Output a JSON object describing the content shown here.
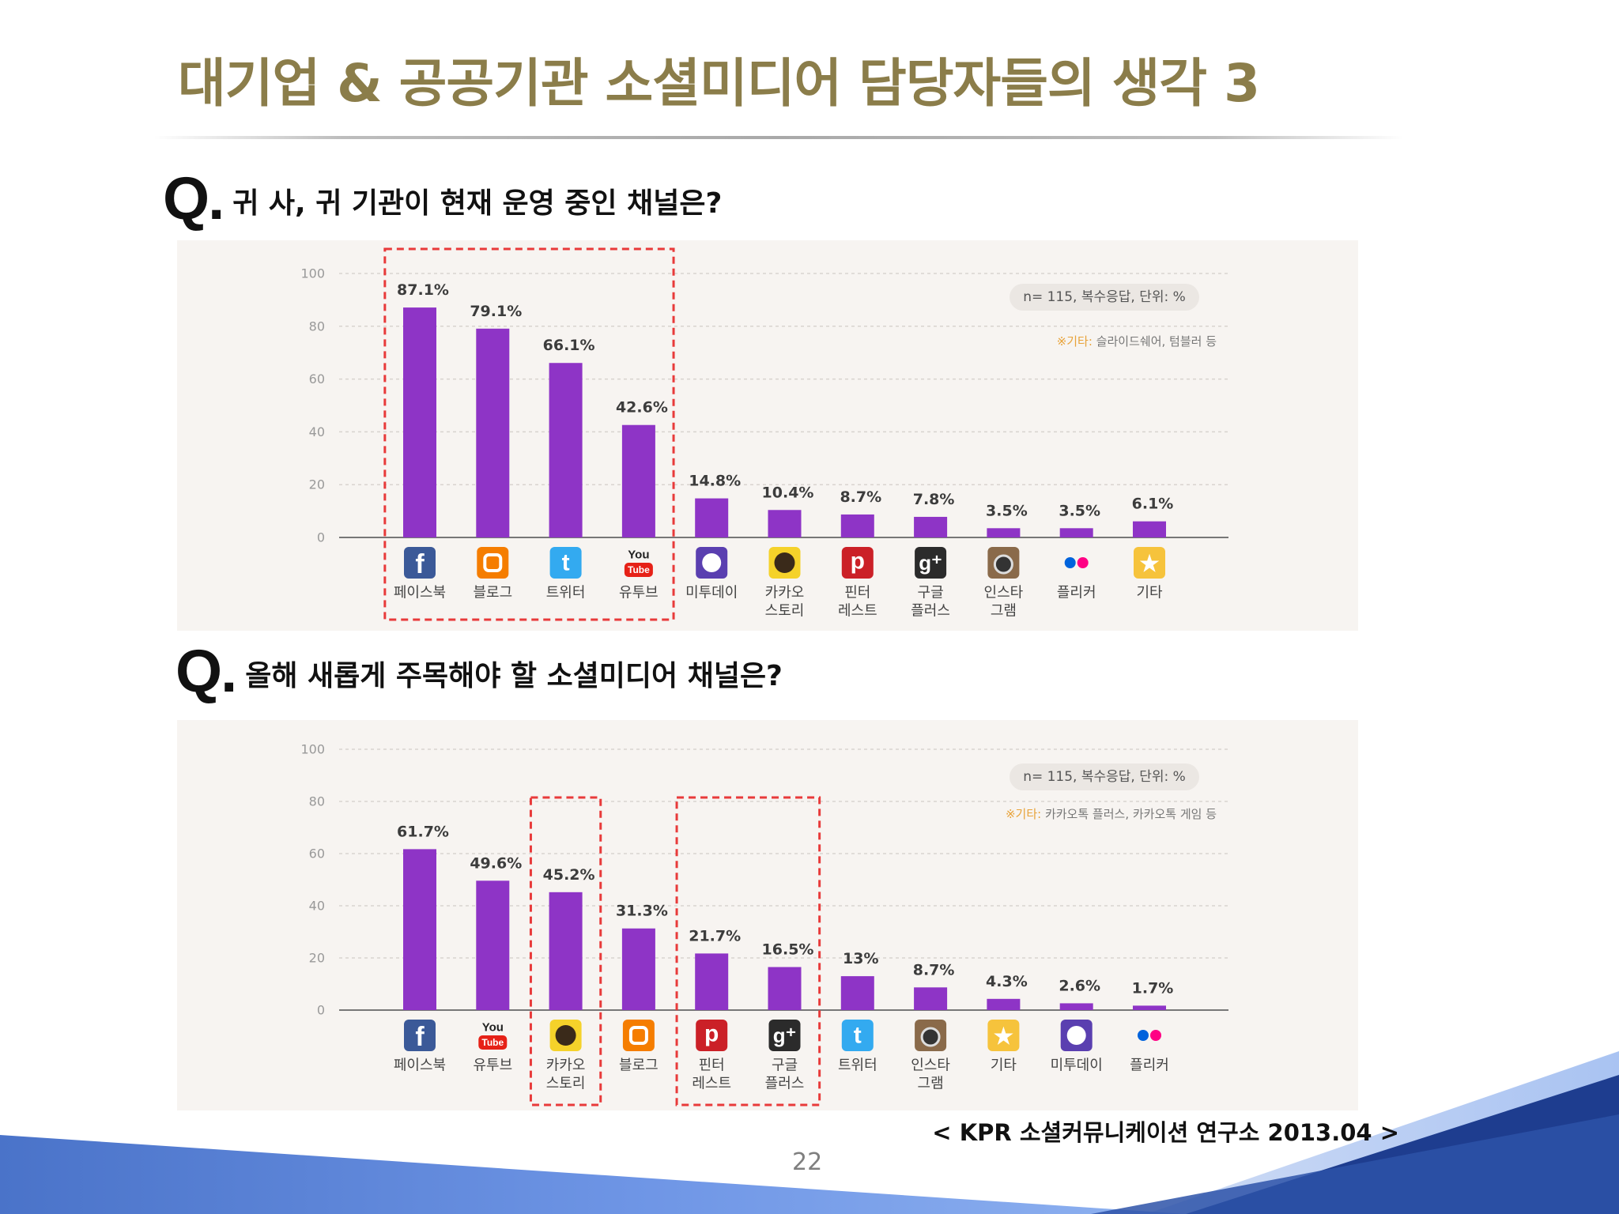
{
  "slide": {
    "title": "대기업 & 공공기관 소셜미디어 담당자들의 생각 3",
    "source": "< KPR 소셜커뮤니케이션 연구소 2013.04 >",
    "page_number": "22"
  },
  "questions": [
    {
      "mark": "Q.",
      "text": "귀 사, 귀 기관이 현재 운영 중인 채널은?"
    },
    {
      "mark": "Q.",
      "text": "올해 새롭게 주목해야 할 소셜미디어 채널은?"
    }
  ],
  "colors": {
    "bar": "#8e34c6",
    "title": "#8b7d4a",
    "highlight_box": "#e83a3a",
    "axis": "#777777",
    "panel": "#f7f4f1"
  },
  "chart_data": [
    {
      "type": "bar",
      "title": "",
      "xlabel": "",
      "ylabel": "",
      "ylim": [
        0,
        100
      ],
      "yticks": [
        0,
        20,
        40,
        60,
        80,
        100
      ],
      "grid": true,
      "note": "n= 115, 복수응답, 단위: %",
      "footnote_mark": "※기타:",
      "footnote_text": "슬라이드쉐어, 텀블러 등",
      "categories": [
        "페이스북",
        "블로그",
        "트위터",
        "유투브",
        "미투데이",
        "카카오 스토리",
        "핀터 레스트",
        "구글 플러스",
        "인스타 그램",
        "플리커",
        "기타"
      ],
      "values": [
        87.1,
        79.1,
        66.1,
        42.6,
        14.8,
        10.4,
        8.7,
        7.8,
        3.5,
        3.5,
        6.1
      ],
      "data_labels": [
        "87.1%",
        "79.1%",
        "66.1%",
        "42.6%",
        "14.8%",
        "10.4%",
        "8.7%",
        "7.8%",
        "3.5%",
        "3.5%",
        "6.1%"
      ],
      "icons": [
        "facebook-icon",
        "blogger-icon",
        "twitter-icon",
        "youtube-icon",
        "me2day-icon",
        "kakaostory-icon",
        "pinterest-icon",
        "googleplus-icon",
        "instagram-icon",
        "flickr-icon",
        "star-icon"
      ],
      "highlighted": [
        [
          0,
          3
        ]
      ]
    },
    {
      "type": "bar",
      "title": "",
      "xlabel": "",
      "ylabel": "",
      "ylim": [
        0,
        100
      ],
      "yticks": [
        0,
        20,
        40,
        60,
        80,
        100
      ],
      "grid": true,
      "note": "n= 115, 복수응답, 단위: %",
      "footnote_mark": "※기타:",
      "footnote_text": "카카오톡 플러스, 카카오톡 게임 등",
      "categories": [
        "페이스북",
        "유투브",
        "카카오 스토리",
        "블로그",
        "핀터 레스트",
        "구글 플러스",
        "트위터",
        "인스타 그램",
        "기타",
        "미투데이",
        "플리커"
      ],
      "values": [
        61.7,
        49.6,
        45.2,
        31.3,
        21.7,
        16.5,
        13,
        8.7,
        4.3,
        2.6,
        1.7
      ],
      "data_labels": [
        "61.7%",
        "49.6%",
        "45.2%",
        "31.3%",
        "21.7%",
        "16.5%",
        "13%",
        "8.7%",
        "4.3%",
        "2.6%",
        "1.7%"
      ],
      "icons": [
        "facebook-icon",
        "youtube-icon",
        "kakaostory-icon",
        "blogger-icon",
        "pinterest-icon",
        "googleplus-icon",
        "twitter-icon",
        "instagram-icon",
        "star-icon",
        "me2day-icon",
        "flickr-icon"
      ],
      "highlighted": [
        [
          2,
          2
        ],
        [
          4,
          5
        ]
      ]
    }
  ]
}
